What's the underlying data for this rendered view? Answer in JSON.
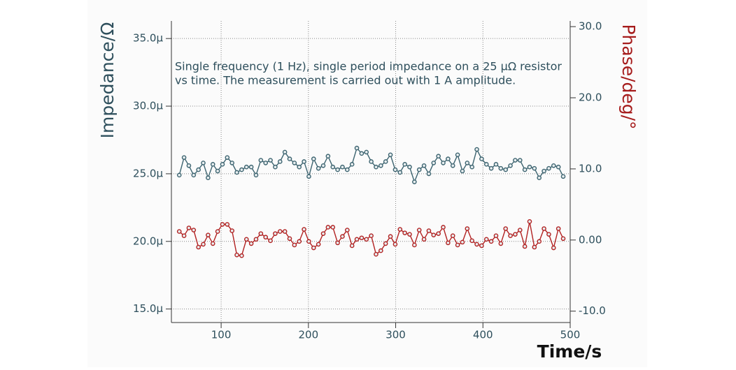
{
  "chart_data": {
    "type": "line",
    "annotation": [
      "Single frequency (1 Hz), single period impedance on a 25 µΩ resistor",
      "vs time. The measurement is carried out with 1 A amplitude."
    ],
    "x_label": "Time/s",
    "y_label": "Impedance/Ω",
    "y2_label": "Phase/deg/°",
    "x": [
      52,
      57.5,
      63,
      68.5,
      74,
      79.5,
      85,
      90.5,
      96,
      101.5,
      107,
      112.5,
      118,
      123.5,
      129,
      134.5,
      140,
      145.5,
      151,
      156.5,
      162,
      167.5,
      173,
      178.5,
      184,
      189.5,
      195,
      200.5,
      206,
      211.5,
      217,
      222.5,
      228,
      233.5,
      239,
      244.5,
      250,
      255.5,
      261,
      266.5,
      272,
      277.5,
      283,
      288.5,
      294,
      299.5,
      305,
      310.5,
      316,
      321.5,
      327,
      332.5,
      338,
      343.5,
      349,
      354.5,
      360,
      365.5,
      371,
      376.5,
      382,
      387.5,
      393,
      398.5,
      404,
      409.5,
      415,
      420.5,
      426,
      431.5,
      437,
      442.5,
      448,
      453.5,
      459,
      464.5,
      470,
      475.5,
      481,
      486.5,
      492
    ],
    "series": [
      {
        "name": "Impedance",
        "color": "#3d6470",
        "axis": "y",
        "values": [
          2.49e-05,
          2.62e-05,
          2.56e-05,
          2.49e-05,
          2.53e-05,
          2.58e-05,
          2.47e-05,
          2.57e-05,
          2.52e-05,
          2.57e-05,
          2.62e-05,
          2.58e-05,
          2.51e-05,
          2.53e-05,
          2.55e-05,
          2.55e-05,
          2.49e-05,
          2.6e-05,
          2.58e-05,
          2.6e-05,
          2.55e-05,
          2.59e-05,
          2.66e-05,
          2.61e-05,
          2.58e-05,
          2.55e-05,
          2.59e-05,
          2.48e-05,
          2.61e-05,
          2.54e-05,
          2.56e-05,
          2.63e-05,
          2.55e-05,
          2.53e-05,
          2.55e-05,
          2.53e-05,
          2.57e-05,
          2.69e-05,
          2.65e-05,
          2.66e-05,
          2.59e-05,
          2.55e-05,
          2.56e-05,
          2.59e-05,
          2.64e-05,
          2.53e-05,
          2.51e-05,
          2.57e-05,
          2.55e-05,
          2.44e-05,
          2.53e-05,
          2.56e-05,
          2.5e-05,
          2.58e-05,
          2.63e-05,
          2.58e-05,
          2.61e-05,
          2.56e-05,
          2.64e-05,
          2.52e-05,
          2.58e-05,
          2.55e-05,
          2.68e-05,
          2.61e-05,
          2.57e-05,
          2.54e-05,
          2.57e-05,
          2.54e-05,
          2.53e-05,
          2.56e-05,
          2.6e-05,
          2.6e-05,
          2.53e-05,
          2.55e-05,
          2.54e-05,
          2.47e-05,
          2.52e-05,
          2.54e-05,
          2.56e-05,
          2.55e-05,
          2.48e-05
        ]
      },
      {
        "name": "Phase",
        "color": "#b22222",
        "axis": "y2",
        "values": [
          1.2,
          0.6,
          1.7,
          1.4,
          -1.0,
          -0.6,
          0.7,
          -0.5,
          1.2,
          2.2,
          2.2,
          1.3,
          -2.1,
          -2.2,
          0.1,
          -0.5,
          0.1,
          0.9,
          0.4,
          -0.1,
          0.9,
          1.2,
          1.2,
          0.2,
          -0.7,
          -0.2,
          1.5,
          -0.2,
          -1.1,
          -0.6,
          0.9,
          1.8,
          1.8,
          -0.4,
          0.5,
          1.4,
          -0.8,
          0.1,
          0.3,
          0.1,
          0.6,
          -2.0,
          -1.5,
          -0.5,
          0.5,
          -0.6,
          1.5,
          1.0,
          0.8,
          -0.7,
          1.4,
          0.1,
          1.3,
          0.7,
          0.9,
          1.8,
          -0.4,
          0.6,
          -0.7,
          -0.3,
          1.6,
          -0.1,
          -0.6,
          -0.8,
          0.1,
          -0.2,
          0.6,
          -0.5,
          1.6,
          0.6,
          0.8,
          1.4,
          -0.9,
          2.6,
          -1.0,
          -0.2,
          1.6,
          0.8,
          -1.1,
          1.6,
          0.2
        ]
      }
    ],
    "xlim": [
      43,
      500
    ],
    "xticks": [
      100,
      200,
      300,
      400,
      500
    ],
    "ylim": [
      1.4e-05,
      3.63e-05
    ],
    "yticks": [
      {
        "value": 1.5e-05,
        "label": "15.0µ"
      },
      {
        "value": 2e-05,
        "label": "20.0µ"
      },
      {
        "value": 2.5e-05,
        "label": "25.0µ"
      },
      {
        "value": 3e-05,
        "label": "30.0µ"
      },
      {
        "value": 3.5e-05,
        "label": "35.0µ"
      }
    ],
    "y2lim": [
      -11.6,
      30.8
    ],
    "y2ticks": [
      {
        "value": -10,
        "label": "-10.0"
      },
      {
        "value": 0,
        "label": "0.00"
      },
      {
        "value": 10,
        "label": "10.0"
      },
      {
        "value": 20,
        "label": "20.0"
      },
      {
        "value": 30,
        "label": "30.0"
      }
    ],
    "grid": true
  }
}
